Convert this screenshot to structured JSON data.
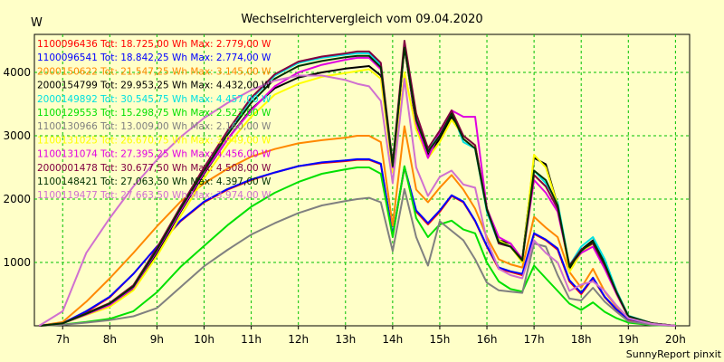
{
  "chart_data": {
    "type": "line",
    "title": "Wechselrichtervergleich vom 09.04.2020",
    "ylabel": "W",
    "footer": "SunnyReport pinxit",
    "ylim": [
      0,
      4600
    ],
    "xlim": [
      6.4,
      20.3
    ],
    "y_ticks": [
      1000,
      2000,
      3000,
      4000
    ],
    "x_ticks": [
      {
        "v": 7,
        "label": "7h"
      },
      {
        "v": 8,
        "label": "8h"
      },
      {
        "v": 9,
        "label": "9h"
      },
      {
        "v": 10,
        "label": "10h"
      },
      {
        "v": 11,
        "label": "11h"
      },
      {
        "v": 12,
        "label": "12h"
      },
      {
        "v": 13,
        "label": "13h"
      },
      {
        "v": 14,
        "label": "14h"
      },
      {
        "v": 15,
        "label": "15h"
      },
      {
        "v": 16,
        "label": "16h"
      },
      {
        "v": 17,
        "label": "17h"
      },
      {
        "v": 18,
        "label": "18h"
      },
      {
        "v": 19,
        "label": "19h"
      },
      {
        "v": 20,
        "label": "20h"
      }
    ],
    "grid": true,
    "legend_position": "top-left",
    "x": [
      6.5,
      7.0,
      7.5,
      8.0,
      8.5,
      9.0,
      9.5,
      10.0,
      10.5,
      11.0,
      11.5,
      12.0,
      12.5,
      13.0,
      13.25,
      13.5,
      13.75,
      14.0,
      14.25,
      14.5,
      14.75,
      15.0,
      15.25,
      15.5,
      15.75,
      16.0,
      16.25,
      16.5,
      16.75,
      17.0,
      17.25,
      17.5,
      17.75,
      18.0,
      18.25,
      18.5,
      18.75,
      19.0,
      19.5,
      20.0
    ],
    "series": [
      {
        "name": "1100096436",
        "legend": "1100096436 Tot: 18.725,00 Wh Max: 2.779,00 W",
        "color": "#ff0000",
        "values": [
          0,
          40,
          220,
          450,
          820,
          1250,
          1650,
          1950,
          2150,
          2300,
          2420,
          2520,
          2570,
          2600,
          2620,
          2620,
          2550,
          1420,
          2500,
          1800,
          1600,
          1800,
          2050,
          1950,
          1650,
          1250,
          900,
          850,
          800,
          1450,
          1350,
          1200,
          700,
          500,
          750,
          450,
          250,
          100,
          30,
          0
        ]
      },
      {
        "name": "1100096541",
        "legend": "1100096541 Tot: 18.842,25 Wh Max: 2.774,00 W",
        "color": "#0000ff",
        "values": [
          0,
          40,
          230,
          460,
          820,
          1250,
          1660,
          1960,
          2160,
          2310,
          2420,
          2520,
          2580,
          2610,
          2630,
          2630,
          2560,
          1430,
          2510,
          1820,
          1620,
          1820,
          2060,
          1960,
          1660,
          1260,
          920,
          860,
          820,
          1460,
          1360,
          1220,
          720,
          520,
          760,
          460,
          260,
          110,
          30,
          0
        ]
      },
      {
        "name": "2000150622",
        "legend": "2000150622 Tot: 21.547,25 Wh Max: 3.145,00 W",
        "color": "#ff8800",
        "values": [
          0,
          60,
          380,
          750,
          1150,
          1570,
          1960,
          2250,
          2480,
          2670,
          2790,
          2880,
          2930,
          2970,
          3000,
          3000,
          2900,
          1580,
          3150,
          2150,
          1950,
          2180,
          2380,
          2150,
          1850,
          1400,
          1050,
          970,
          920,
          1720,
          1550,
          1400,
          850,
          600,
          900,
          540,
          300,
          130,
          40,
          0
        ]
      },
      {
        "name": "2000154799",
        "legend": "2000154799 Tot: 29.953,25 Wh Max: 4.432,00 W",
        "color": "#000000",
        "values": [
          0,
          40,
          180,
          320,
          580,
          1150,
          1800,
          2400,
          2950,
          3420,
          3750,
          3920,
          4000,
          4060,
          4080,
          4100,
          3950,
          2450,
          4420,
          3150,
          2700,
          2950,
          3300,
          3000,
          2850,
          1850,
          1350,
          1300,
          1050,
          2650,
          2550,
          1900,
          900,
          1200,
          1350,
          1000,
          550,
          150,
          40,
          0
        ]
      },
      {
        "name": "2000149892",
        "legend": "2000149892 Tot: 30.545,75 Wh Max: 4.457,00 W",
        "color": "#00e0e0",
        "values": [
          0,
          40,
          190,
          340,
          610,
          1200,
          1850,
          2480,
          3050,
          3580,
          3950,
          4150,
          4230,
          4280,
          4300,
          4300,
          4120,
          2550,
          4450,
          3300,
          2800,
          3050,
          3380,
          2900,
          2800,
          1800,
          1300,
          1250,
          1050,
          2450,
          2250,
          1950,
          950,
          1250,
          1400,
          1050,
          550,
          160,
          40,
          0
        ]
      },
      {
        "name": "1100129553",
        "legend": "1100129553 Tot: 15.298,75 Wh Max: 2.523,00 W",
        "color": "#00e000",
        "values": [
          0,
          20,
          60,
          110,
          230,
          530,
          930,
          1260,
          1590,
          1880,
          2100,
          2270,
          2400,
          2470,
          2500,
          2500,
          2400,
          1400,
          2520,
          1700,
          1400,
          1600,
          1660,
          1520,
          1460,
          1000,
          700,
          580,
          540,
          950,
          750,
          550,
          350,
          250,
          370,
          220,
          120,
          50,
          10,
          0
        ]
      },
      {
        "name": "1100130966",
        "legend": "1100130966 Tot: 13.009,00 Wh Max: 2.160,00 W",
        "color": "#808080",
        "values": [
          0,
          15,
          50,
          90,
          150,
          280,
          610,
          940,
          1200,
          1440,
          1620,
          1780,
          1900,
          1970,
          2000,
          2020,
          1950,
          1180,
          2160,
          1400,
          950,
          1650,
          1500,
          1350,
          1050,
          680,
          560,
          540,
          520,
          1300,
          1250,
          800,
          430,
          400,
          600,
          380,
          220,
          70,
          15,
          0
        ]
      },
      {
        "name": "1100131025",
        "legend": "1100131025 Tot: 26.670,75 Wh Max: 3.949,00 W",
        "color": "#ffff00",
        "values": [
          0,
          40,
          170,
          300,
          560,
          1100,
          1730,
          2330,
          2860,
          3300,
          3650,
          3820,
          3930,
          3990,
          4020,
          4050,
          3900,
          2420,
          4000,
          3100,
          2650,
          2900,
          3250,
          3000,
          2850,
          1850,
          1350,
          1250,
          1000,
          2700,
          2500,
          1900,
          850,
          1150,
          1300,
          950,
          500,
          140,
          40,
          0
        ]
      },
      {
        "name": "1100131074",
        "legend": "1100131074 Tot: 27.395,25 Wh Max: 4.456,00 W",
        "color": "#e000e0",
        "values": [
          0,
          40,
          180,
          330,
          600,
          1180,
          1820,
          2420,
          2950,
          3400,
          3780,
          4000,
          4120,
          4200,
          4230,
          4230,
          4050,
          2500,
          4400,
          3200,
          2650,
          3050,
          3400,
          3300,
          3300,
          1850,
          1400,
          1300,
          1050,
          2300,
          2100,
          1800,
          950,
          1150,
          1250,
          900,
          500,
          140,
          40,
          0
        ]
      },
      {
        "name": "2000001478",
        "legend": "2000001478 Tot: 30.677,50 Wh Max: 4.508,00 W",
        "color": "#800040",
        "values": [
          0,
          40,
          200,
          360,
          640,
          1230,
          1880,
          2500,
          3080,
          3600,
          3970,
          4170,
          4250,
          4300,
          4330,
          4330,
          4150,
          2560,
          4500,
          3350,
          2800,
          3080,
          3400,
          3000,
          2850,
          1850,
          1300,
          1250,
          1050,
          2380,
          2200,
          1850,
          950,
          1200,
          1300,
          950,
          520,
          150,
          40,
          0
        ]
      },
      {
        "name": "1100148421",
        "legend": "1100148421 Tot: 27.063,50 Wh Max: 4.397,00 W",
        "color": "#003000",
        "values": [
          0,
          40,
          190,
          350,
          620,
          1200,
          1850,
          2450,
          3020,
          3520,
          3900,
          4100,
          4180,
          4240,
          4260,
          4260,
          4080,
          2520,
          4390,
          3250,
          2750,
          3000,
          3350,
          2950,
          2800,
          1830,
          1320,
          1250,
          1030,
          2450,
          2300,
          1900,
          930,
          1180,
          1330,
          980,
          530,
          150,
          40,
          0
        ]
      },
      {
        "name": "1100119477",
        "legend": "1100119477 Tot: 27.663,50 Wh Max: 3.974,00 W",
        "color": "#d070d0",
        "values": [
          0,
          230,
          1150,
          1700,
          2200,
          2620,
          2980,
          3280,
          3520,
          3720,
          3870,
          3950,
          3950,
          3880,
          3820,
          3780,
          3550,
          2250,
          3900,
          2500,
          2050,
          2350,
          2450,
          2230,
          2180,
          1350,
          900,
          800,
          750,
          1350,
          1150,
          1000,
          550,
          650,
          700,
          550,
          320,
          120,
          30,
          0
        ]
      }
    ]
  }
}
